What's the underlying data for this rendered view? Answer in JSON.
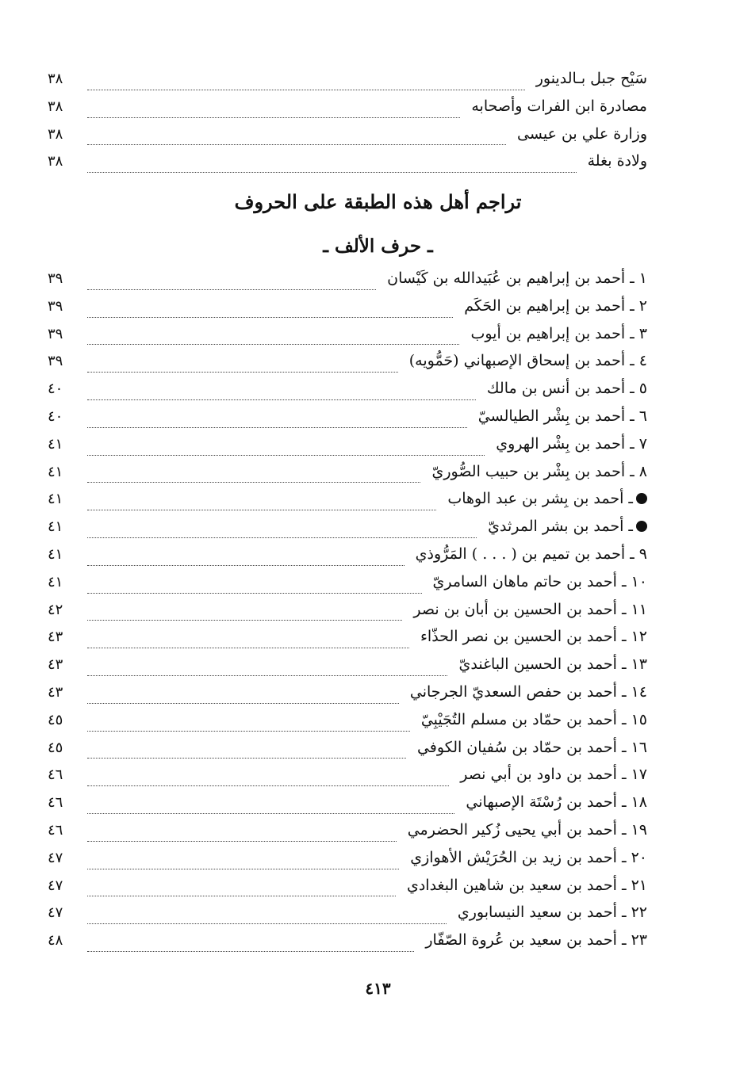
{
  "top_entries": [
    {
      "title": "سَيْح جبل بـالدينور",
      "page": "٣٨"
    },
    {
      "title": "مصادرة ابن الفرات وأصحابه",
      "page": "٣٨"
    },
    {
      "title": "وزارة علي بن عيسى",
      "page": "٣٨"
    },
    {
      "title": "ولادة بغلة",
      "page": "٣٨"
    }
  ],
  "section_title": "تراجم أهل هذه الطبقة على الحروف",
  "subsection_title": "ـ حرف الألف ـ",
  "entries": [
    {
      "title": "١ ـ أحمد بن إبراهيم بن عُبَيدالله بن كَيْسان",
      "page": "٣٩"
    },
    {
      "title": "٢ ـ أحمد بن إبراهيم بن الحَكَم",
      "page": "٣٩"
    },
    {
      "title": "٣ ـ أحمد بن إبراهيم بن أيوب",
      "page": "٣٩"
    },
    {
      "title": "٤ ـ أحمد بن إسحاق الإصبهاني (حَمُّويه)",
      "page": "٣٩"
    },
    {
      "title": "٥ ـ أحمد بن أنس بن مالك",
      "page": "٤٠"
    },
    {
      "title": "٦ ـ أحمد بن بِشْر الطيالسيّ",
      "page": "٤٠"
    },
    {
      "title": "٧ ـ أحمد بن بِشْر الهروي",
      "page": "٤١"
    },
    {
      "title": "٨ ـ أحمد بن بِشْر بن حبيب الصُّوريّ",
      "page": "٤١"
    },
    {
      "title": "ـ أحمد بن بِشر بن عبد الوهاب",
      "page": "٤١",
      "bullet": true
    },
    {
      "title": "ـ أحمد بن بشر المرثديّ",
      "page": "٤١",
      "bullet": true
    },
    {
      "title": "٩ ـ أحمد بن تميم بن ( . . . ) المَرُّوذي",
      "page": "٤١"
    },
    {
      "title": "١٠ ـ أحمد بن حاتم ماهان السامريّ",
      "page": "٤١"
    },
    {
      "title": "١١ ـ أحمد بن الحسين بن أبان بن نصر",
      "page": "٤٢"
    },
    {
      "title": "١٢ ـ أحمد بن الحسين بن نصر الحذّاء",
      "page": "٤٣"
    },
    {
      "title": "١٣ ـ أحمد بن الحسين الباغنديّ",
      "page": "٤٣"
    },
    {
      "title": "١٤ ـ أحمد بن حفص السعديّ الجرجاني",
      "page": "٤٣"
    },
    {
      "title": "١٥ ـ أحمد بن حمّاد بن مسلم التُجَيْبِيّ",
      "page": "٤٥"
    },
    {
      "title": "١٦ ـ أحمد بن حمّاد بن سُفيان الكوفي",
      "page": "٤٥"
    },
    {
      "title": "١٧ ـ أحمد بن داود بن أبي نصر",
      "page": "٤٦"
    },
    {
      "title": "١٨ ـ أحمد بن رُسْتَة الإصبهاني",
      "page": "٤٦"
    },
    {
      "title": "١٩ ـ أحمد بن أبي يحيى زُكير الحضرمي",
      "page": "٤٦"
    },
    {
      "title": "٢٠ ـ أحمد بن زيد بن الحُرَيْش الأهوازي",
      "page": "٤٧"
    },
    {
      "title": "٢١ ـ أحمد بن سعيد بن شاهين البغدادي",
      "page": "٤٧"
    },
    {
      "title": "٢٢ ـ أحمد بن سعيد النيسابوري",
      "page": "٤٧"
    },
    {
      "title": "٢٣ ـ أحمد بن سعيد بن عُروة الصّفّار",
      "page": "٤٨"
    }
  ],
  "page_number": "٤١٣"
}
